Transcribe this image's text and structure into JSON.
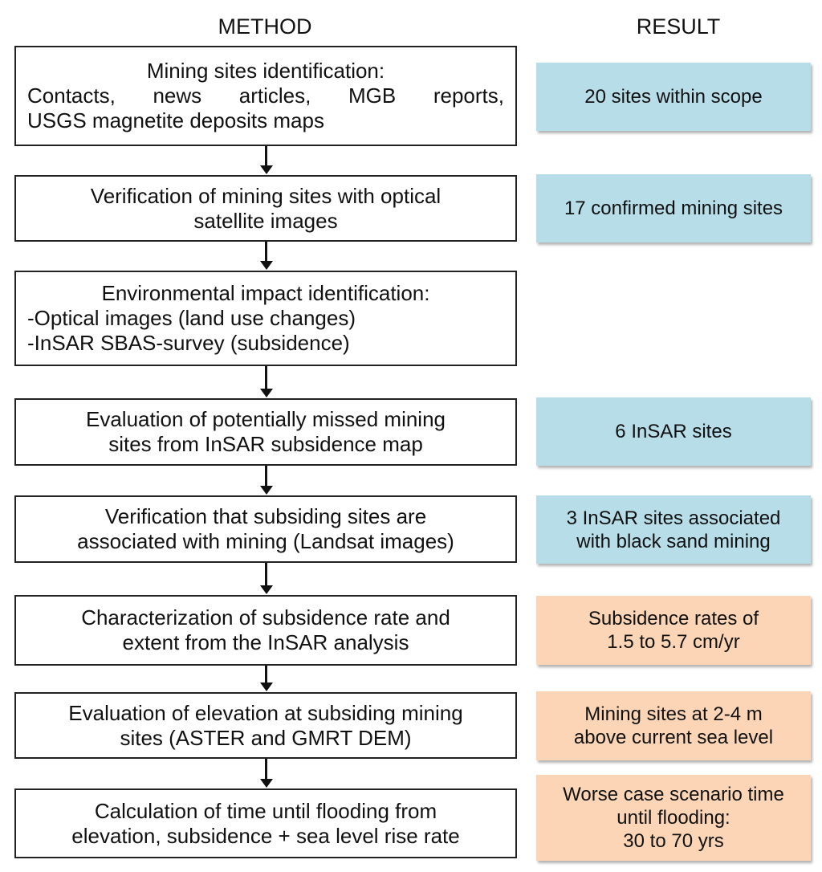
{
  "headers": {
    "method": "METHOD",
    "result": "RESULT"
  },
  "colors": {
    "result_blue": "#b7dde8",
    "result_orange": "#fbd5b5"
  },
  "method_steps": [
    {
      "lines": [
        "Mining sites identification:",
        "Contacts, news articles, MGB reports,",
        "USGS magnetite deposits maps"
      ]
    },
    {
      "lines": [
        "Verification of mining sites with optical",
        "satellite images"
      ]
    },
    {
      "lines": [
        "Environmental impact identification:",
        "-Optical images (land use changes)",
        "-InSAR SBAS-survey (subsidence)"
      ]
    },
    {
      "lines": [
        "Evaluation of potentially missed mining",
        "sites from InSAR subsidence map"
      ]
    },
    {
      "lines": [
        "Verification that subsiding sites are",
        "associated with mining (Landsat images)"
      ]
    },
    {
      "lines": [
        "Characterization of subsidence rate and",
        "extent from the InSAR analysis"
      ]
    },
    {
      "lines": [
        "Evaluation of elevation at subsiding mining",
        "sites (ASTER and GMRT DEM)"
      ]
    },
    {
      "lines": [
        "Calculation of time until flooding from",
        "elevation, subsidence + sea level rise rate"
      ]
    }
  ],
  "results": [
    {
      "step": 1,
      "color": "blue",
      "lines": [
        "20 sites within scope"
      ]
    },
    {
      "step": 2,
      "color": "blue",
      "lines": [
        "17 confirmed mining sites"
      ]
    },
    {
      "step": 4,
      "color": "blue",
      "lines": [
        "6 InSAR sites"
      ]
    },
    {
      "step": 5,
      "color": "blue",
      "lines": [
        "3 InSAR sites associated",
        "with black sand mining"
      ]
    },
    {
      "step": 6,
      "color": "orange",
      "lines": [
        "Subsidence rates of",
        "1.5 to 5.7 cm/yr"
      ]
    },
    {
      "step": 7,
      "color": "orange",
      "lines": [
        "Mining sites at 2-4 m",
        "above current sea level"
      ]
    },
    {
      "step": 8,
      "color": "orange",
      "lines": [
        "Worse case scenario time",
        "until flooding:",
        "30 to 70 yrs"
      ]
    }
  ]
}
